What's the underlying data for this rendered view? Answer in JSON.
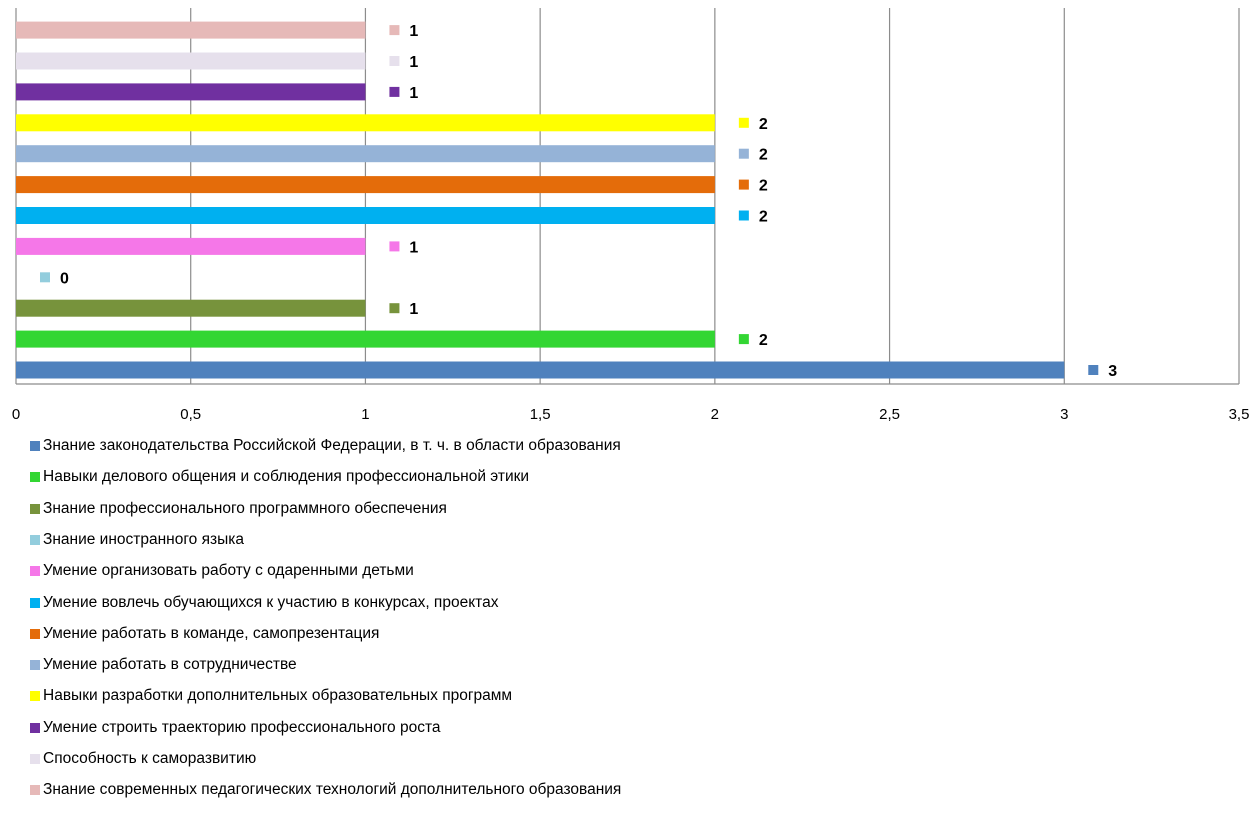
{
  "chart_data": {
    "type": "bar",
    "orientation": "horizontal",
    "xlim": [
      0,
      3.5
    ],
    "x_ticks": [
      "0",
      "0,5",
      "1",
      "1,5",
      "2",
      "2,5",
      "3",
      "3,5"
    ],
    "grid": "vertical",
    "legend_position": "bottom",
    "series": [
      {
        "name": "Знание законодательства Российской Федерации, в т. ч. в области образования",
        "value": 3,
        "color": "#4f81bd"
      },
      {
        "name": "Навыки делового общения и соблюдения профессиональной этики",
        "value": 2,
        "color": "#33d633"
      },
      {
        "name": "Знание профессионального программного обеспечения",
        "value": 1,
        "color": "#77933c"
      },
      {
        "name": "Знание иностранного языка",
        "value": 0,
        "color": "#93cddd"
      },
      {
        "name": "Умение организовать работу с одаренными детьми",
        "value": 1,
        "color": "#f577e8"
      },
      {
        "name": "Умение вовлечь обучающихся к участию в конкурсах, проектах",
        "value": 2,
        "color": "#00b0f0"
      },
      {
        "name": "Умение работать в команде, самопрезентация",
        "value": 2,
        "color": "#e46c0a"
      },
      {
        "name": "Умение работать в сотрудничестве",
        "value": 2,
        "color": "#95b3d7"
      },
      {
        "name": "Навыки разработки дополнительных образовательных программ",
        "value": 2,
        "color": "#ffff00"
      },
      {
        "name": "Умение строить траекторию профессионального роста",
        "value": 1,
        "color": "#7030a0"
      },
      {
        "name": "Способность к саморазвитию",
        "value": 1,
        "color": "#e6e0ec"
      },
      {
        "name": "Знание современных педагогических технологий дополнительного образования",
        "value": 1,
        "color": "#e6b9b8"
      }
    ]
  }
}
